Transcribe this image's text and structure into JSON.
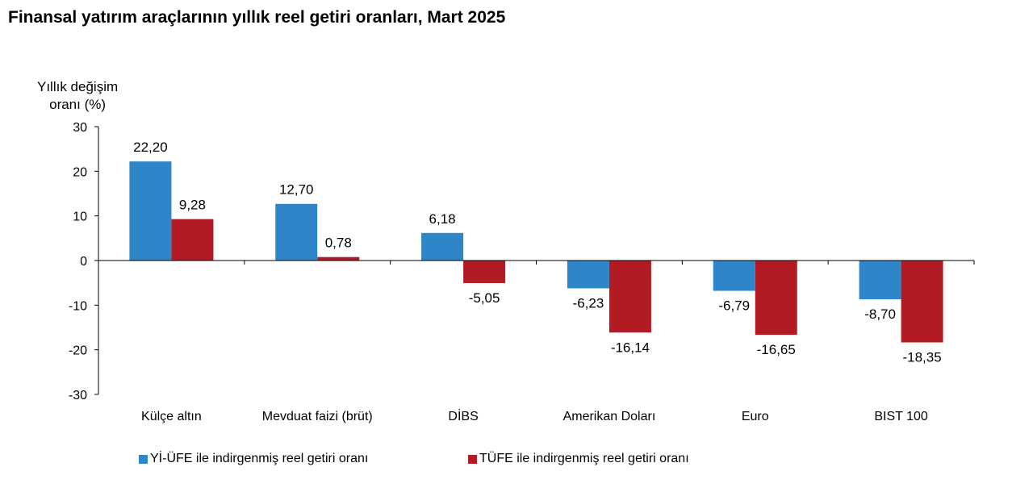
{
  "chart_data": {
    "type": "bar",
    "title": "Finansal yatırım araçlarının yıllık reel getiri oranları, Mart 2025",
    "ylabel_lines": [
      "Yıllık değişim",
      "oranı (%)"
    ],
    "xlabel": "",
    "ylim": [
      -30,
      30
    ],
    "yticks": [
      30,
      20,
      10,
      0,
      -10,
      -20,
      -30
    ],
    "categories": [
      "Külçe altın",
      "Mevduat faizi (brüt)",
      "DİBS",
      "Amerikan Doları",
      "Euro",
      "BIST 100"
    ],
    "series": [
      {
        "name": "Yİ-ÜFE ile indirgenmiş reel getiri oranı",
        "color": "#2E86C8",
        "values": [
          22.2,
          12.7,
          6.18,
          -6.23,
          -6.79,
          -8.7
        ],
        "labels": [
          "22,20",
          "12,70",
          "6,18",
          "-6,23",
          "-6,79",
          "-8,70"
        ]
      },
      {
        "name": "TÜFE ile indirgenmiş reel getiri oranı",
        "color": "#B31B24",
        "values": [
          9.28,
          0.78,
          -5.05,
          -16.14,
          -16.65,
          -18.35
        ],
        "labels": [
          "9,28",
          "0,78",
          "-5,05",
          "-16,14",
          "-16,65",
          "-18,35"
        ]
      }
    ],
    "grid": false,
    "legend_position": "bottom"
  }
}
